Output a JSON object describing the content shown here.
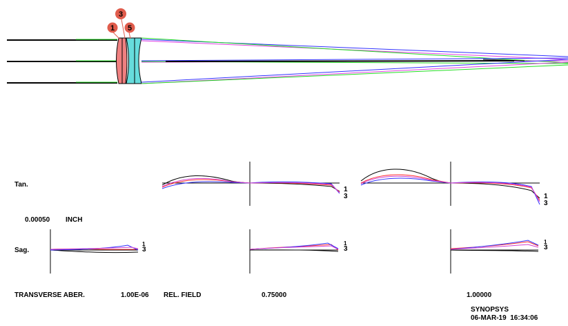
{
  "colors": {
    "background": "#ffffff",
    "ray_green": "#22dd22",
    "ray_blue": "#3030ff",
    "ray_magenta": "#e040e0",
    "ray_black": "#000000",
    "lens1_fill": "#f08080",
    "lens2_fill": "#66dcdc",
    "surface_marker": "#e05c4c",
    "curve_black": "#000000",
    "curve_red": "#ff3030",
    "curve_blue": "#3030ff",
    "curve_magenta": "#d040d0"
  },
  "surface_markers": [
    "1",
    "3",
    "5"
  ],
  "labels": {
    "tan": "Tan.",
    "sag": "Sag.",
    "scale_value": "0.00050",
    "scale_unit": "INCH",
    "transverse": "TRANSVERSE ABER.",
    "tolerance": "1.00E-06",
    "rel_field": "REL. FIELD",
    "field_075": "0.75000",
    "field_100": "1.00000",
    "program": "SYNOPSYS",
    "date_time": "06-MAR-19  16:34:06"
  },
  "curve_tags": {
    "tan_075": [
      "1",
      "3"
    ],
    "tan_100": [
      "1",
      "3"
    ],
    "sag_000": [
      "1",
      "3"
    ],
    "sag_075": [
      "1",
      "3"
    ],
    "sag_100": [
      "1",
      "3"
    ]
  }
}
